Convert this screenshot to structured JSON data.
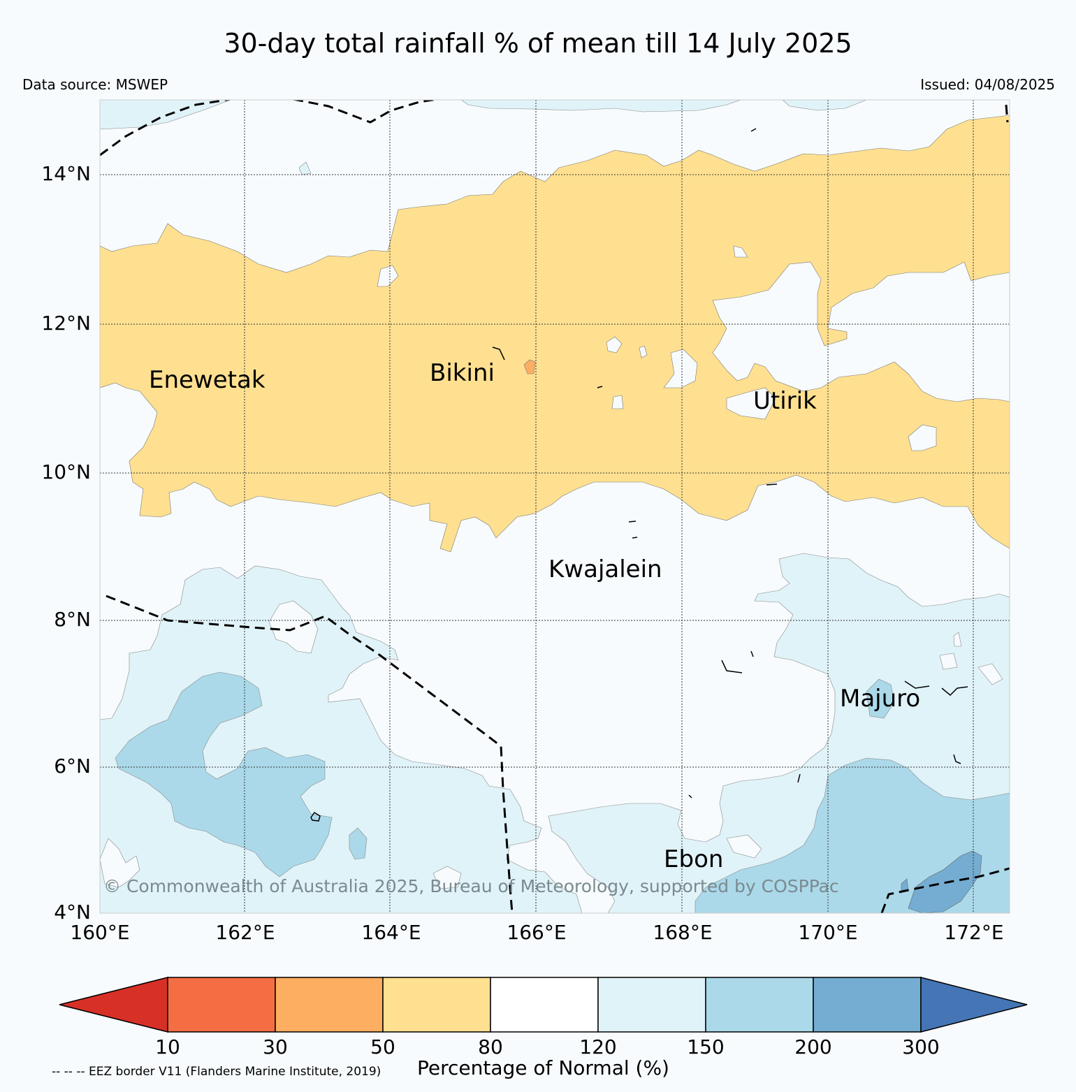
{
  "title": "30-day total rainfall % of mean till 14 July 2025",
  "data_source": "Data source: MSWEP",
  "issued": "Issued: 04/08/2025",
  "map": {
    "lat_labels": [
      "14°N",
      "12°N",
      "10°N",
      "8°N",
      "6°N",
      "4°N"
    ],
    "lon_labels": [
      "160°E",
      "162°E",
      "164°E",
      "166°E",
      "168°E",
      "170°E",
      "172°E"
    ],
    "places": {
      "enewetak": "Enewetak",
      "bikini": "Bikini",
      "utirik": "Utirik",
      "kwajalein": "Kwajalein",
      "majuro": "Majuro",
      "ebon": "Ebon"
    },
    "copyright": "© Commonwealth of Australia 2025, Bureau of Meteorology, supported by COSPPac"
  },
  "colorbar": {
    "title": "Percentage of Normal (%)",
    "ticks": [
      "10",
      "30",
      "50",
      "80",
      "120",
      "150",
      "200",
      "300"
    ],
    "colors": {
      "below_10": "#d73027",
      "10_30": "#f46d43",
      "30_50": "#fdae61",
      "50_80": "#fee090",
      "80_120": "#ffffff",
      "120_150": "#e0f3f8",
      "150_200": "#abd9e9",
      "200_300": "#74add1",
      "above_300": "#4575b4"
    }
  },
  "eez_note": "-- -- -- EEZ border V11 (Flanders Marine Institute, 2019)"
}
